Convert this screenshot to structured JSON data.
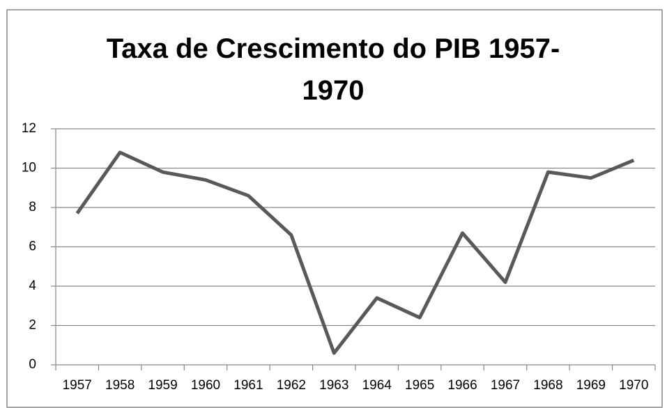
{
  "chart_data": {
    "type": "line",
    "title": "Taxa de Crescimento do PIB 1957-1970",
    "categories": [
      "1957",
      "1958",
      "1959",
      "1960",
      "1961",
      "1962",
      "1963",
      "1964",
      "1965",
      "1966",
      "1967",
      "1968",
      "1969",
      "1970"
    ],
    "values": [
      7.7,
      10.8,
      9.8,
      9.4,
      8.6,
      6.6,
      0.6,
      3.4,
      2.4,
      6.7,
      4.2,
      9.8,
      9.5,
      10.4
    ],
    "color": "#595959",
    "ylim": [
      0,
      12
    ],
    "yticks": [
      0,
      2,
      4,
      6,
      8,
      10,
      12
    ],
    "grid": true
  }
}
